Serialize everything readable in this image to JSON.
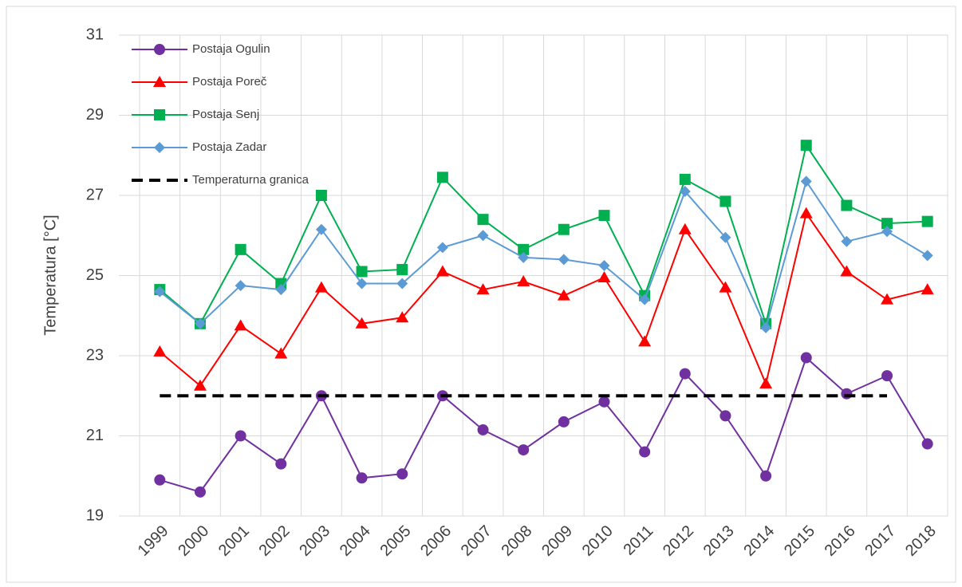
{
  "chart_data": {
    "type": "line",
    "y_label": "Temperatura [°C]",
    "categories": [
      "1999",
      "2000",
      "2001",
      "2002",
      "2003",
      "2004",
      "2005",
      "2006",
      "2007",
      "2008",
      "2009",
      "2010",
      "2011",
      "2012",
      "2013",
      "2014",
      "2015",
      "2016",
      "2017",
      "2018"
    ],
    "series": [
      {
        "name": "Postaja Ogulin",
        "color": "#7030a0",
        "marker": "circle",
        "values": [
          19.9,
          19.6,
          21.0,
          20.3,
          22.0,
          19.95,
          20.05,
          22.0,
          21.15,
          20.65,
          21.35,
          21.85,
          20.6,
          22.55,
          21.5,
          20.0,
          22.95,
          22.05,
          22.5,
          20.8
        ]
      },
      {
        "name": "Postaja Poreč",
        "color": "#ff0000",
        "marker": "triangle",
        "values": [
          23.1,
          22.25,
          23.75,
          23.05,
          24.7,
          23.8,
          23.95,
          25.1,
          24.65,
          24.85,
          24.5,
          24.95,
          23.35,
          26.15,
          24.7,
          22.3,
          26.55,
          25.1,
          24.4,
          24.65
        ]
      },
      {
        "name": "Postaja Senj",
        "color": "#00b050",
        "marker": "square",
        "values": [
          24.65,
          23.8,
          25.65,
          24.8,
          27.0,
          25.1,
          25.15,
          27.45,
          26.4,
          25.65,
          26.15,
          26.5,
          24.5,
          27.4,
          26.85,
          23.8,
          28.25,
          26.75,
          26.3,
          26.35
        ]
      },
      {
        "name": "Postaja Zadar",
        "color": "#5b9bd5",
        "marker": "diamond",
        "values": [
          24.6,
          23.8,
          24.75,
          24.65,
          26.15,
          24.8,
          24.8,
          25.7,
          26.0,
          25.45,
          25.4,
          25.25,
          24.4,
          27.1,
          25.95,
          23.7,
          27.35,
          25.85,
          26.1,
          25.5
        ]
      },
      {
        "name": "Temperaturna granica",
        "color": "#000000",
        "dashed": true,
        "values": [
          22,
          22,
          22,
          22,
          22,
          22,
          22,
          22,
          22,
          22,
          22,
          22,
          22,
          22,
          22,
          22,
          22,
          22,
          22,
          null
        ]
      }
    ],
    "ylim": [
      19,
      31
    ],
    "yticks": [
      19,
      21,
      23,
      25,
      27,
      29,
      31
    ],
    "grid": true,
    "legend": "upper left"
  }
}
